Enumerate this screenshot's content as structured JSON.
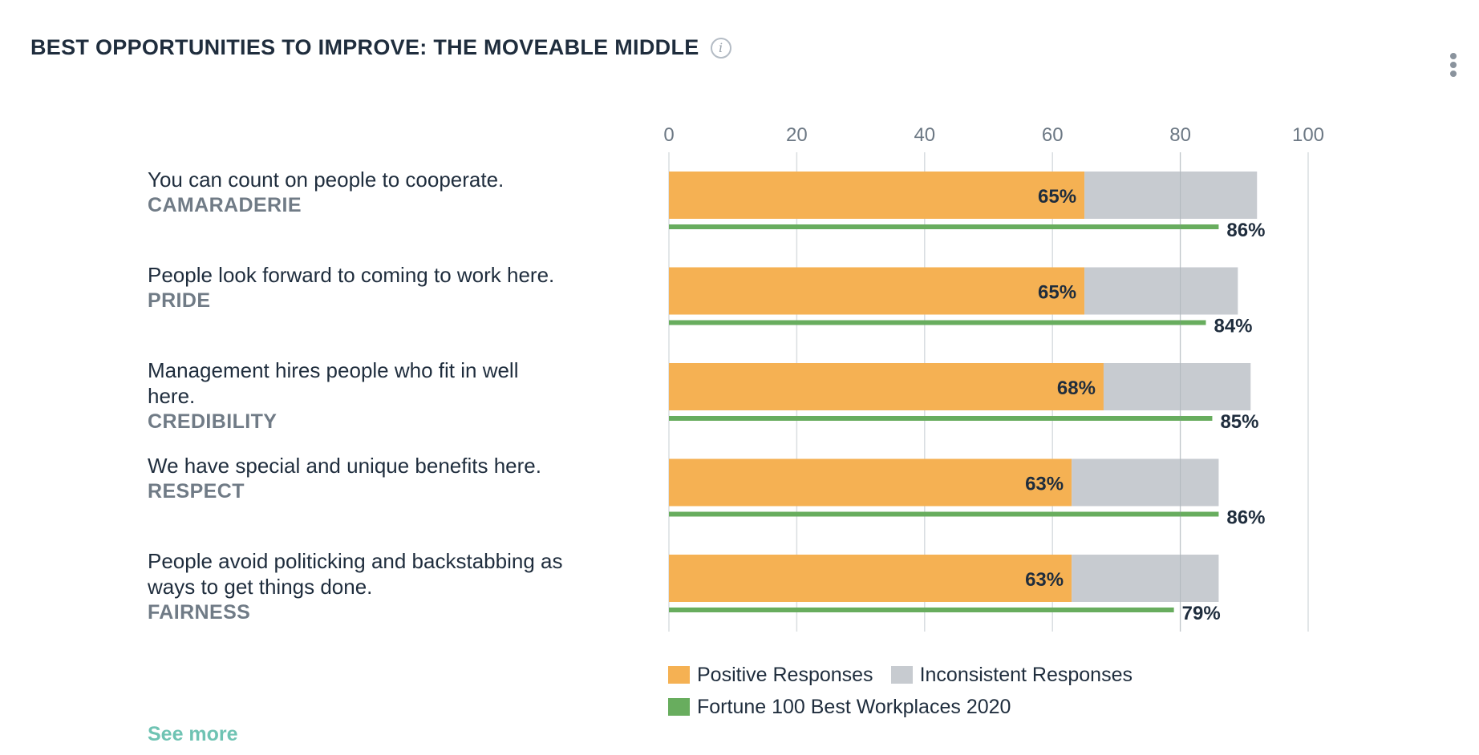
{
  "header": {
    "title": "BEST OPPORTUNITIES TO IMPROVE: THE MOVEABLE MIDDLE",
    "info_icon": "info-icon",
    "menu_icon": "kebab-menu-icon"
  },
  "colors": {
    "positive": "#f5b153",
    "inconsistent": "#c7cbd0",
    "benchmark": "#68ad5e",
    "grid": "#d9dde1"
  },
  "chart_data": {
    "type": "bar",
    "orientation": "horizontal",
    "title": "BEST OPPORTUNITIES TO IMPROVE: THE MOVEABLE MIDDLE",
    "xlim": [
      0,
      100
    ],
    "xticks": [
      "0",
      "20",
      "40",
      "60",
      "80",
      "100"
    ],
    "categories": [
      {
        "text": "You can count on people to cooperate.",
        "category": "CAMARADERIE"
      },
      {
        "text": "People look forward to coming to work here.",
        "category": "PRIDE"
      },
      {
        "text": "Management hires people who fit in well here.",
        "category": "CREDIBILITY"
      },
      {
        "text": "We have special and unique benefits here.",
        "category": "RESPECT"
      },
      {
        "text": "People avoid politicking and backstabbing as ways to get things done.",
        "category": "FAIRNESS"
      }
    ],
    "series": [
      {
        "name": "Positive Responses",
        "values": [
          65,
          65,
          68,
          63,
          63
        ],
        "labels": [
          "65%",
          "65%",
          "68%",
          "63%",
          "63%"
        ]
      },
      {
        "name": "Inconsistent Responses",
        "values": [
          27,
          24,
          23,
          23,
          23
        ]
      },
      {
        "name": "Fortune 100 Best Workplaces 2020",
        "values": [
          86,
          84,
          85,
          86,
          79
        ],
        "labels": [
          "86%",
          "84%",
          "85%",
          "86%",
          "79%"
        ]
      }
    ],
    "legend": [
      "Positive Responses",
      "Inconsistent Responses",
      "Fortune 100 Best Workplaces 2020"
    ]
  },
  "footer": {
    "see_more": "See more"
  }
}
